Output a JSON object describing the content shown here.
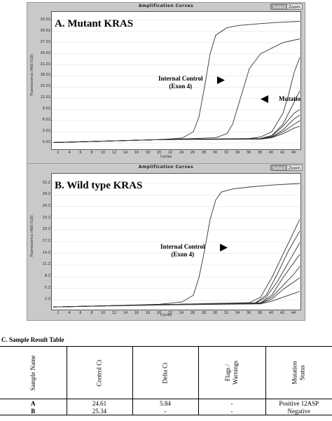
{
  "panel_a": {
    "window_title": "Amplification Curves",
    "select_button": "Select",
    "zoom_button": "Zoom",
    "title": "A. Mutant KRAS",
    "ylabel": "Fluorescence (465-510)",
    "xlabel": "Cycles",
    "yticks": [
      "33.013",
      "30.013",
      "27.013",
      "24.013",
      "21.013",
      "18.013",
      "15.013",
      "12.013",
      "9.013",
      "6.013",
      "3.013",
      "0.013"
    ],
    "xticks": [
      "2",
      "4",
      "6",
      "8",
      "10",
      "12",
      "14",
      "16",
      "18",
      "20",
      "22",
      "24",
      "26",
      "28",
      "30",
      "32",
      "34",
      "36",
      "38",
      "40",
      "42",
      "44"
    ],
    "internal_control_line1": "Internal Control",
    "internal_control_line2": "(Exon 4)",
    "mutation_label": "Mutation"
  },
  "panel_b": {
    "window_title": "Amplification Curves",
    "select_button": "Select",
    "zoom_button": "Zoom",
    "title": "B. Wild type KRAS",
    "ylabel": "Fluorescence (465-510)",
    "xlabel": "Cycles",
    "yticks": [
      "32.27",
      "29.27",
      "26.27",
      "23.27",
      "20.27",
      "17.27",
      "14.27",
      "11.27",
      "8.27",
      "5.27",
      "2.27"
    ],
    "xticks": [
      "2",
      "4",
      "6",
      "8",
      "10",
      "12",
      "14",
      "16",
      "18",
      "20",
      "22",
      "24",
      "26",
      "28",
      "30",
      "32",
      "34",
      "36",
      "38",
      "40",
      "42",
      "44"
    ],
    "internal_control_line1": "Internal Control",
    "internal_control_line2": "(Exon 4)"
  },
  "chart_data": [
    {
      "type": "line",
      "title": "A. Mutant KRAS",
      "xlabel": "Cycles",
      "ylabel": "Fluorescence (465-510)",
      "xlim": [
        1,
        45
      ],
      "ylim": [
        -1.5,
        34.5
      ],
      "series": [
        {
          "name": "Internal Control (Exon 4)",
          "x": [
            1,
            10,
            20,
            24,
            26,
            27,
            28,
            29,
            30,
            32,
            34,
            38,
            42,
            45
          ],
          "y": [
            0.1,
            0.5,
            0.9,
            1.3,
            3,
            7,
            15,
            24,
            29,
            31,
            31.6,
            32.1,
            32.5,
            32.7
          ]
        },
        {
          "name": "Mutation",
          "x": [
            1,
            10,
            20,
            30,
            32,
            33,
            34,
            35,
            36,
            38,
            42,
            45
          ],
          "y": [
            0.1,
            0.5,
            0.9,
            1.4,
            2.5,
            5,
            10,
            15,
            20,
            24,
            27,
            28
          ]
        },
        {
          "x": [
            1,
            20,
            36,
            38,
            40,
            42,
            43,
            44,
            45
          ],
          "y": [
            0.1,
            0.9,
            1.2,
            1.6,
            3,
            8,
            13,
            19,
            23
          ]
        },
        {
          "x": [
            1,
            20,
            38,
            40,
            42,
            44,
            45
          ],
          "y": [
            0.1,
            0.9,
            1.2,
            2,
            5,
            11,
            14
          ]
        },
        {
          "x": [
            1,
            20,
            38,
            40,
            42,
            44,
            45
          ],
          "y": [
            0.1,
            0.9,
            1.1,
            1.8,
            4.5,
            8,
            9
          ]
        },
        {
          "x": [
            1,
            20,
            38,
            40,
            42,
            44,
            45
          ],
          "y": [
            0.1,
            0.9,
            1.1,
            1.6,
            3.5,
            6.5,
            7.5
          ]
        },
        {
          "x": [
            1,
            20,
            38,
            40,
            42,
            44,
            45
          ],
          "y": [
            0.1,
            0.9,
            1.1,
            1.5,
            3,
            5,
            6
          ]
        },
        {
          "x": [
            1,
            20,
            38,
            40,
            42,
            44,
            45
          ],
          "y": [
            0.1,
            0.9,
            1.0,
            1.4,
            2.5,
            4,
            4.5
          ]
        }
      ]
    },
    {
      "type": "line",
      "title": "B. Wild type KRAS",
      "xlabel": "Cycles",
      "ylabel": "Fluorescence (465-510)",
      "xlim": [
        1,
        45
      ],
      "ylim": [
        0,
        34
      ],
      "series": [
        {
          "name": "Internal Control (Exon 4)",
          "x": [
            1,
            10,
            20,
            24,
            26,
            27,
            28,
            29,
            30,
            31,
            33,
            36,
            40,
            45
          ],
          "y": [
            0.5,
            0.8,
            1.2,
            1.8,
            3.5,
            8,
            15,
            23,
            28,
            30,
            30.8,
            31.3,
            31.8,
            32.2
          ]
        },
        {
          "x": [
            1,
            20,
            36,
            38,
            40,
            42,
            44,
            45
          ],
          "y": [
            0.5,
            1.1,
            1.6,
            3,
            8,
            14,
            20,
            23
          ]
        },
        {
          "x": [
            1,
            20,
            37,
            39,
            41,
            43,
            45
          ],
          "y": [
            0.5,
            1.1,
            1.5,
            3.5,
            9,
            15,
            20
          ]
        },
        {
          "x": [
            1,
            20,
            37,
            39,
            41,
            43,
            45
          ],
          "y": [
            0.5,
            1.1,
            1.4,
            3,
            7,
            12,
            17
          ]
        },
        {
          "x": [
            1,
            20,
            38,
            40,
            42,
            44,
            45
          ],
          "y": [
            0.5,
            1.1,
            1.6,
            3.5,
            8,
            12,
            14
          ]
        },
        {
          "x": [
            1,
            20,
            38,
            40,
            42,
            44,
            45
          ],
          "y": [
            0.5,
            1.1,
            1.5,
            3,
            6,
            9,
            11
          ]
        },
        {
          "x": [
            1,
            20,
            38,
            40,
            42,
            44,
            45
          ],
          "y": [
            0.5,
            1.1,
            1.4,
            2.5,
            5,
            7,
            8
          ]
        },
        {
          "x": [
            1,
            20,
            38,
            40,
            42,
            44,
            45
          ],
          "y": [
            0.5,
            1.0,
            1.3,
            2,
            3,
            4,
            4.5
          ]
        }
      ]
    },
    {
      "type": "table",
      "columns": [
        "Sample Name",
        "Control Ct",
        "Delta Ct",
        "Flags / Warnings",
        "Mutation Status"
      ],
      "rows": [
        [
          "A",
          "24.61",
          "5.84",
          "-",
          "Positive 12ASP"
        ],
        [
          "B",
          "25.34",
          "-",
          "-",
          "Negative"
        ]
      ]
    }
  ],
  "table": {
    "section_title": "C.   Sample Result Table",
    "headers": {
      "sample": "Sample Name",
      "control": "Control Ct",
      "delta": "Delta Ct",
      "flags1": "Flags /",
      "flags2": "Warnings",
      "status1": "Mutation",
      "status2": "Status"
    },
    "rows": [
      {
        "sample": "A",
        "control": "24.61",
        "delta": "5.84",
        "flags": "-",
        "status": "Positive 12ASP"
      },
      {
        "sample": "B",
        "control": "25.34",
        "delta": "-",
        "flags": "-",
        "status": "Negative"
      }
    ]
  }
}
